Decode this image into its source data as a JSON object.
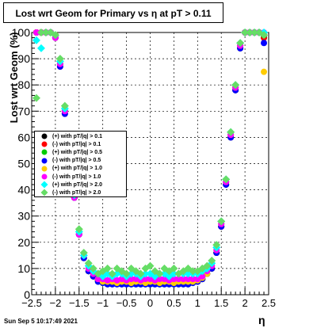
{
  "title": "Lost wrt Geom for Primary vs    η at pT > 0.11",
  "timestamp": "Sun Sep  5 10:17:49 2021",
  "chart_data": {
    "type": "scatter",
    "xlabel": "η",
    "ylabel": "Lost wrt Geom (%)",
    "xlim": [
      -2.5,
      2.5
    ],
    "ylim": [
      0,
      100
    ],
    "x_ticks": [
      "−2.5",
      "−2",
      "−1.5",
      "−1",
      "−0.5",
      "0",
      "0.5",
      "1",
      "1.5",
      "2",
      "2.5"
    ],
    "y_ticks": [
      "0",
      "10",
      "20",
      "30",
      "40",
      "50",
      "60",
      "70",
      "80",
      "90",
      "100"
    ],
    "grid": true,
    "legend_position": "center-left",
    "series": [
      {
        "name": "(+) with pT/|q| > 0.1",
        "color": "#000000",
        "marker": "circle",
        "x": [
          -2.4,
          -2.3,
          -2.2,
          -2.1,
          -2.0,
          -1.9,
          -1.8,
          -1.7,
          -1.6,
          -1.5,
          -1.4,
          -1.3,
          -1.2,
          -1.1,
          -1.0,
          -0.9,
          -0.8,
          -0.7,
          -0.6,
          -0.5,
          -0.4,
          -0.3,
          -0.2,
          -0.1,
          0.0,
          0.1,
          0.2,
          0.3,
          0.4,
          0.5,
          0.6,
          0.7,
          0.8,
          0.9,
          1.0,
          1.1,
          1.2,
          1.3,
          1.4,
          1.5,
          1.6,
          1.7,
          1.8,
          1.9,
          2.0,
          2.1,
          2.2,
          2.3,
          2.4
        ],
        "y": [
          100,
          100,
          100,
          100,
          99,
          88,
          70,
          52,
          38,
          24,
          14,
          9,
          7,
          5.5,
          5,
          4.5,
          4.5,
          4.5,
          4.5,
          4.5,
          4.5,
          4.5,
          4.5,
          4.5,
          4.5,
          4.5,
          4.5,
          4.5,
          4.5,
          4.5,
          4.5,
          4.5,
          4.5,
          5,
          5,
          6,
          8,
          10,
          16,
          26,
          42,
          60,
          78,
          94,
          100,
          100,
          100,
          100,
          98
        ]
      },
      {
        "name": "(-) with pT/|q| > 0.1",
        "color": "#ff0000",
        "marker": "circle",
        "x": [
          -2.4,
          -2.3,
          -2.2,
          -2.1,
          -2.0,
          -1.9,
          -1.8,
          -1.7,
          -1.6,
          -1.5,
          -1.4,
          -1.3,
          -1.2,
          -1.1,
          -1.0,
          -0.9,
          -0.8,
          -0.7,
          -0.6,
          -0.5,
          -0.4,
          -0.3,
          -0.2,
          -0.1,
          0.0,
          0.1,
          0.2,
          0.3,
          0.4,
          0.5,
          0.6,
          0.7,
          0.8,
          0.9,
          1.0,
          1.1,
          1.2,
          1.3,
          1.4,
          1.5,
          1.6,
          1.7,
          1.8,
          1.9,
          2.0,
          2.1,
          2.2,
          2.3,
          2.4
        ],
        "y": [
          100,
          100,
          100,
          100,
          98,
          87,
          69,
          51,
          37,
          23,
          14,
          9,
          7,
          5.5,
          5,
          4.5,
          4.5,
          4.5,
          4.5,
          4.5,
          4.5,
          4.5,
          4.5,
          4.5,
          4.5,
          4.5,
          4.5,
          4.5,
          4.5,
          4.5,
          4.5,
          4.5,
          4.5,
          5,
          5,
          6,
          8,
          10,
          16,
          26,
          43,
          61,
          79,
          95,
          100,
          100,
          100,
          100,
          98
        ]
      },
      {
        "name": "(+) with pT/|q| > 0.5",
        "color": "#00cc00",
        "marker": "circle",
        "x": [
          -2.4,
          -2.3,
          -2.2,
          -2.1,
          -2.0,
          -1.9,
          -1.8,
          -1.7,
          -1.6,
          -1.5,
          -1.4,
          -1.3,
          -1.2,
          -1.1,
          -1.0,
          -0.9,
          -0.8,
          -0.7,
          -0.6,
          -0.5,
          -0.4,
          -0.3,
          -0.2,
          -0.1,
          0.0,
          0.1,
          0.2,
          0.3,
          0.4,
          0.5,
          0.6,
          0.7,
          0.8,
          0.9,
          1.0,
          1.1,
          1.2,
          1.3,
          1.4,
          1.5,
          1.6,
          1.7,
          1.8,
          1.9,
          2.0,
          2.1,
          2.2,
          2.3,
          2.4
        ],
        "y": [
          100,
          100,
          100,
          100,
          99,
          88,
          70,
          52,
          37,
          23,
          14,
          9,
          7,
          5,
          4.5,
          4,
          4,
          4,
          4,
          4,
          4,
          4,
          4,
          4,
          4,
          4,
          4,
          4,
          4,
          4,
          4,
          4,
          4,
          4.5,
          5,
          6,
          8,
          10,
          16,
          27,
          43,
          61,
          79,
          95,
          100,
          100,
          100,
          100,
          99
        ]
      },
      {
        "name": "(-) with pT/|q| > 0.5",
        "color": "#0000ff",
        "marker": "circle",
        "x": [
          -2.4,
          -2.3,
          -2.2,
          -2.1,
          -2.0,
          -1.9,
          -1.8,
          -1.7,
          -1.6,
          -1.5,
          -1.4,
          -1.3,
          -1.2,
          -1.1,
          -1.0,
          -0.9,
          -0.8,
          -0.7,
          -0.6,
          -0.5,
          -0.4,
          -0.3,
          -0.2,
          -0.1,
          0.0,
          0.1,
          0.2,
          0.3,
          0.4,
          0.5,
          0.6,
          0.7,
          0.8,
          0.9,
          1.0,
          1.1,
          1.2,
          1.3,
          1.4,
          1.5,
          1.6,
          1.7,
          1.8,
          1.9,
          2.0,
          2.1,
          2.2,
          2.3,
          2.4
        ],
        "y": [
          100,
          100,
          100,
          100,
          98,
          87,
          69,
          51,
          37,
          23,
          14,
          9,
          7,
          5,
          4.5,
          4,
          4,
          4,
          4,
          4,
          4,
          4,
          4,
          4,
          4,
          4,
          4,
          4,
          4,
          4,
          4,
          4,
          4,
          4.5,
          5,
          6,
          8,
          10,
          16,
          26,
          42,
          60,
          78,
          94,
          100,
          100,
          100,
          100,
          96
        ]
      },
      {
        "name": "(+) with pT/|q| > 1.0",
        "color": "#ffcc00",
        "marker": "circle",
        "x": [
          -2.4,
          -2.3,
          -2.2,
          -2.1,
          -2.0,
          -1.9,
          -1.8,
          -1.7,
          -1.6,
          -1.5,
          -1.4,
          -1.3,
          -1.2,
          -1.1,
          -1.0,
          -0.9,
          -0.8,
          -0.7,
          -0.6,
          -0.5,
          -0.4,
          -0.3,
          -0.2,
          -0.1,
          0.0,
          0.1,
          0.2,
          0.3,
          0.4,
          0.5,
          0.6,
          0.7,
          0.8,
          0.9,
          1.0,
          1.1,
          1.2,
          1.3,
          1.4,
          1.5,
          1.6,
          1.7,
          1.8,
          1.9,
          2.0,
          2.1,
          2.2,
          2.3,
          2.4
        ],
        "y": [
          100,
          100,
          100,
          100,
          99,
          89,
          71,
          53,
          38,
          24,
          15,
          10,
          8,
          6,
          5,
          5,
          5,
          4.5,
          5,
          5,
          4.5,
          5,
          5,
          4.5,
          5,
          5,
          4.5,
          5,
          5,
          4.5,
          5,
          5,
          5,
          5,
          5.5,
          6.5,
          8,
          11,
          17,
          27,
          43,
          61,
          79,
          95,
          100,
          100,
          100,
          100,
          85
        ]
      },
      {
        "name": "(-) with pT/|q| > 1.0",
        "color": "#ff00ff",
        "marker": "circle",
        "x": [
          -2.4,
          -2.3,
          -2.2,
          -2.1,
          -2.0,
          -1.9,
          -1.8,
          -1.7,
          -1.6,
          -1.5,
          -1.4,
          -1.3,
          -1.2,
          -1.1,
          -1.0,
          -0.9,
          -0.8,
          -0.7,
          -0.6,
          -0.5,
          -0.4,
          -0.3,
          -0.2,
          -0.1,
          0.0,
          0.1,
          0.2,
          0.3,
          0.4,
          0.5,
          0.6,
          0.7,
          0.8,
          0.9,
          1.0,
          1.1,
          1.2,
          1.3,
          1.4,
          1.5,
          1.6,
          1.7,
          1.8,
          1.9,
          2.0,
          2.1,
          2.2,
          2.3,
          2.4
        ],
        "y": [
          100,
          100,
          100,
          100,
          98,
          88,
          70,
          52,
          37,
          23,
          15,
          10,
          8,
          6,
          6,
          5.5,
          6,
          5.5,
          6,
          5.5,
          6,
          6,
          5.5,
          6,
          6,
          5.5,
          6,
          6,
          5.5,
          6,
          6,
          6,
          6,
          6,
          6,
          7,
          9,
          11,
          17,
          27,
          43,
          61,
          79,
          95,
          100,
          100,
          100,
          100,
          100
        ]
      },
      {
        "name": "(+) with pT/|q| > 2.0",
        "color": "#00ffff",
        "marker": "diamond",
        "x": [
          -2.4,
          -2.3,
          -2.2,
          -2.1,
          -2.0,
          -1.9,
          -1.8,
          -1.7,
          -1.6,
          -1.5,
          -1.4,
          -1.3,
          -1.2,
          -1.1,
          -1.0,
          -0.9,
          -0.8,
          -0.7,
          -0.6,
          -0.5,
          -0.4,
          -0.3,
          -0.2,
          -0.1,
          0.0,
          0.1,
          0.2,
          0.3,
          0.4,
          0.5,
          0.6,
          0.7,
          0.8,
          0.9,
          1.0,
          1.1,
          1.2,
          1.3,
          1.4,
          1.5,
          1.6,
          1.7,
          1.8,
          1.9,
          2.0,
          2.1,
          2.2,
          2.3,
          2.4
        ],
        "y": [
          97,
          94,
          100,
          100,
          99,
          89,
          71,
          53,
          38,
          24,
          15,
          11,
          9,
          8,
          7,
          8,
          7,
          8,
          8,
          7,
          8,
          8,
          7,
          8,
          8,
          7,
          8,
          8,
          7,
          8,
          8,
          8,
          8,
          8,
          8,
          9,
          10,
          12,
          18,
          28,
          44,
          62,
          80,
          96,
          100,
          100,
          100,
          100,
          100
        ]
      },
      {
        "name": "(-) with pT/|q| > 2.0",
        "color": "#66dd66",
        "marker": "diamond",
        "x": [
          -2.4,
          -2.3,
          -2.2,
          -2.1,
          -2.0,
          -1.9,
          -1.8,
          -1.7,
          -1.6,
          -1.5,
          -1.4,
          -1.3,
          -1.2,
          -1.1,
          -1.0,
          -0.9,
          -0.8,
          -0.7,
          -0.6,
          -0.5,
          -0.4,
          -0.3,
          -0.2,
          -0.1,
          0.0,
          0.1,
          0.2,
          0.3,
          0.4,
          0.5,
          0.6,
          0.7,
          0.8,
          0.9,
          1.0,
          1.1,
          1.2,
          1.3,
          1.4,
          1.5,
          1.6,
          1.7,
          1.8,
          1.9,
          2.0,
          2.1,
          2.2,
          2.3,
          2.4
        ],
        "y": [
          75,
          100,
          100,
          100,
          99,
          90,
          72,
          54,
          39,
          25,
          16,
          12,
          10,
          8,
          9,
          10,
          8,
          10,
          9,
          8,
          10,
          9,
          8,
          10,
          11,
          9,
          8,
          10,
          9,
          10,
          8,
          9,
          10,
          9,
          9,
          10,
          11,
          13,
          19,
          28,
          44,
          62,
          80,
          96,
          100,
          100,
          100,
          100,
          99
        ]
      }
    ]
  }
}
